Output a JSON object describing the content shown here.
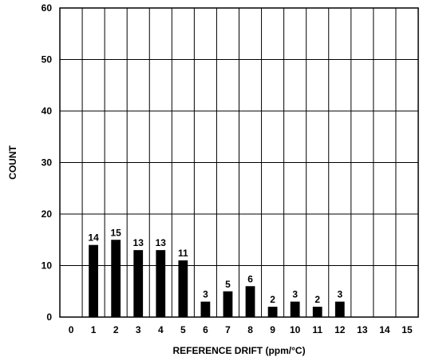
{
  "chart_data": {
    "type": "bar",
    "title": "",
    "xlabel": "REFERENCE DRIFT (ppm/°C)",
    "ylabel": "COUNT",
    "x_ticks": [
      "0",
      "1",
      "2",
      "3",
      "4",
      "5",
      "6",
      "7",
      "8",
      "9",
      "10",
      "11",
      "12",
      "13",
      "14",
      "15"
    ],
    "y_ticks": [
      "0",
      "10",
      "20",
      "30",
      "40",
      "50",
      "60"
    ],
    "categories": [
      1,
      2,
      3,
      4,
      5,
      6,
      7,
      8,
      9,
      10,
      11,
      12
    ],
    "values": [
      14,
      15,
      13,
      13,
      11,
      3,
      5,
      6,
      2,
      3,
      2,
      3
    ],
    "data_labels": [
      "14",
      "15",
      "13",
      "13",
      "11",
      "3",
      "5",
      "6",
      "2",
      "3",
      "2",
      "3"
    ],
    "xlim": [
      0,
      15
    ],
    "ylim": [
      0,
      60
    ],
    "grid": true,
    "legend": "none",
    "colors": {
      "bar": "#000000",
      "grid": "#000000",
      "background": "#ffffff"
    }
  }
}
